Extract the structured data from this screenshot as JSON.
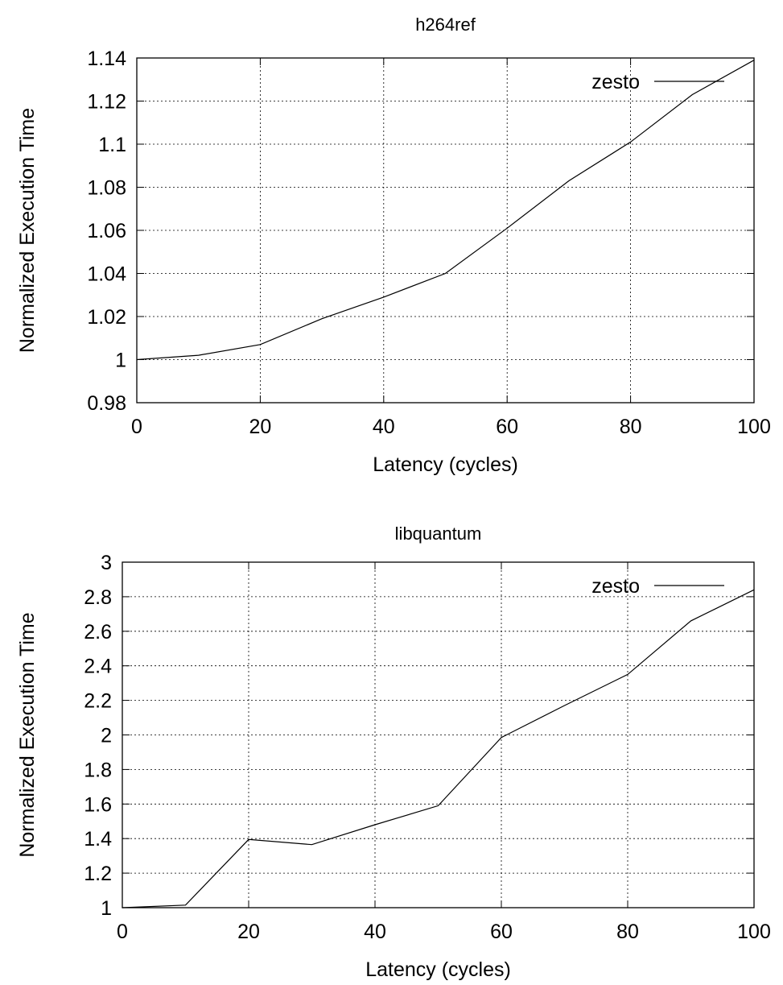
{
  "chart_data": [
    {
      "type": "line",
      "title": "h264ref",
      "xlabel": "Latency (cycles)",
      "ylabel": "Normalized Execution Time",
      "xlim": [
        0,
        100
      ],
      "ylim": [
        0.98,
        1.14
      ],
      "xticks": [
        0,
        20,
        40,
        60,
        80,
        100
      ],
      "yticks": [
        0.98,
        1,
        1.02,
        1.04,
        1.06,
        1.08,
        1.1,
        1.12,
        1.14
      ],
      "xtick_labels": [
        "0",
        "20",
        "40",
        "60",
        "80",
        "100"
      ],
      "ytick_labels": [
        "0.98",
        "1",
        "1.02",
        "1.04",
        "1.06",
        "1.08",
        "1.1",
        "1.12",
        "1.14"
      ],
      "grid": true,
      "legend_position": "top-right",
      "series": [
        {
          "name": "zesto",
          "x": [
            0,
            10,
            20,
            30,
            40,
            50,
            60,
            70,
            80,
            90,
            100
          ],
          "y": [
            1.0,
            1.002,
            1.007,
            1.019,
            1.029,
            1.04,
            1.061,
            1.083,
            1.101,
            1.123,
            1.139
          ]
        }
      ]
    },
    {
      "type": "line",
      "title": "libquantum",
      "xlabel": "Latency (cycles)",
      "ylabel": "Normalized Execution Time",
      "xlim": [
        0,
        100
      ],
      "ylim": [
        1,
        3
      ],
      "xticks": [
        0,
        20,
        40,
        60,
        80,
        100
      ],
      "yticks": [
        1,
        1.2,
        1.4,
        1.6,
        1.8,
        2,
        2.2,
        2.4,
        2.6,
        2.8,
        3
      ],
      "xtick_labels": [
        "0",
        "20",
        "40",
        "60",
        "80",
        "100"
      ],
      "ytick_labels": [
        "1",
        "1.2",
        "1.4",
        "1.6",
        "1.8",
        "2",
        "2.2",
        "2.4",
        "2.6",
        "2.8",
        "3"
      ],
      "grid": true,
      "legend_position": "top-right",
      "series": [
        {
          "name": "zesto",
          "x": [
            0,
            10,
            20,
            30,
            40,
            50,
            60,
            70,
            80,
            90,
            100
          ],
          "y": [
            1.0,
            1.015,
            1.395,
            1.365,
            1.48,
            1.59,
            1.985,
            2.17,
            2.35,
            2.66,
            2.84
          ]
        }
      ]
    }
  ]
}
